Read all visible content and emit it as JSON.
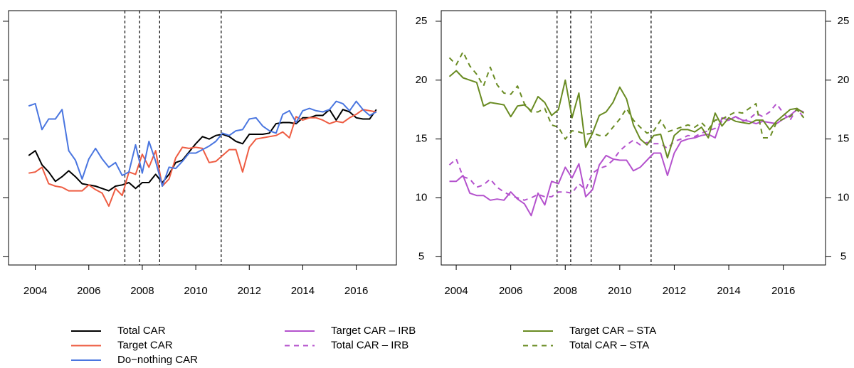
{
  "chart_data": [
    {
      "type": "line",
      "x": [
        2003.75,
        2004.0,
        2004.25,
        2004.5,
        2004.75,
        2005.0,
        2005.25,
        2005.5,
        2005.75,
        2006.0,
        2006.25,
        2006.5,
        2006.75,
        2007.0,
        2007.25,
        2007.5,
        2007.75,
        2008.0,
        2008.25,
        2008.5,
        2008.75,
        2009.0,
        2009.25,
        2009.5,
        2009.75,
        2010.0,
        2010.25,
        2010.5,
        2010.75,
        2011.0,
        2011.25,
        2011.5,
        2011.75,
        2012.0,
        2012.25,
        2012.5,
        2012.75,
        2013.0,
        2013.25,
        2013.5,
        2013.75,
        2014.0,
        2014.25,
        2014.5,
        2014.75,
        2015.0,
        2015.25,
        2015.5,
        2015.75,
        2016.0,
        2016.25,
        2016.5,
        2016.75
      ],
      "xlim": [
        2003.0,
        2017.5
      ],
      "xticks": [
        2004,
        2006,
        2008,
        2010,
        2012,
        2014,
        2016
      ],
      "ylim": [
        4.3,
        25.9
      ],
      "yticks": [
        5,
        10,
        15,
        20,
        25
      ],
      "ytick_sides": [
        "left"
      ],
      "ytick_labels": false,
      "vlines": [
        2007.35,
        2007.9,
        2008.65,
        2010.95
      ],
      "series": [
        {
          "name": "Total CAR",
          "color": "#000000",
          "style": "solid",
          "values": [
            13.6,
            14.0,
            12.8,
            12.2,
            11.4,
            11.8,
            12.3,
            11.8,
            11.2,
            11.1,
            11.0,
            10.8,
            10.6,
            11.0,
            11.1,
            11.3,
            10.8,
            11.3,
            11.3,
            12.0,
            11.3,
            12.0,
            13.0,
            13.2,
            13.9,
            14.6,
            15.2,
            15.0,
            15.3,
            15.4,
            15.2,
            14.8,
            14.6,
            15.4,
            15.4,
            15.4,
            15.5,
            16.3,
            16.4,
            16.4,
            16.3,
            16.8,
            16.8,
            17.0,
            17.0,
            17.5,
            16.6,
            17.5,
            17.3,
            16.8,
            16.7,
            16.7,
            17.5
          ]
        },
        {
          "name": "Target CAR",
          "color": "#ee5c42",
          "style": "solid",
          "values": [
            12.1,
            12.2,
            12.6,
            11.2,
            11.0,
            10.9,
            10.6,
            10.6,
            10.6,
            11.1,
            10.7,
            10.4,
            9.3,
            10.8,
            10.2,
            12.2,
            12.0,
            13.7,
            12.6,
            14.0,
            11.0,
            11.6,
            13.4,
            14.3,
            14.2,
            14.3,
            14.2,
            13.0,
            13.1,
            13.6,
            14.1,
            14.1,
            12.2,
            14.3,
            15.0,
            15.1,
            15.2,
            15.3,
            15.6,
            15.1,
            16.9,
            16.6,
            16.8,
            16.8,
            16.6,
            16.3,
            16.5,
            16.4,
            16.8,
            17.1,
            17.5,
            17.4,
            17.3
          ]
        },
        {
          "name": "Do−nothing CAR",
          "color": "#4a76e0",
          "style": "solid",
          "values": [
            17.8,
            18.0,
            15.8,
            16.7,
            16.7,
            17.5,
            14.0,
            13.2,
            11.6,
            13.3,
            14.2,
            13.3,
            12.6,
            13.0,
            11.9,
            12.2,
            14.5,
            12.1,
            14.8,
            13.1,
            11.0,
            12.6,
            12.5,
            13.1,
            13.8,
            13.8,
            14.1,
            14.4,
            14.8,
            15.5,
            15.3,
            15.7,
            15.8,
            16.7,
            16.8,
            16.1,
            15.7,
            15.5,
            17.1,
            17.4,
            16.4,
            17.4,
            17.6,
            17.4,
            17.3,
            17.5,
            18.2,
            18.0,
            17.4,
            18.2,
            17.5,
            17.0,
            17.3
          ]
        }
      ]
    },
    {
      "type": "line",
      "x": [
        2003.75,
        2004.0,
        2004.25,
        2004.5,
        2004.75,
        2005.0,
        2005.25,
        2005.5,
        2005.75,
        2006.0,
        2006.25,
        2006.5,
        2006.75,
        2007.0,
        2007.25,
        2007.5,
        2007.75,
        2008.0,
        2008.25,
        2008.5,
        2008.75,
        2009.0,
        2009.25,
        2009.5,
        2009.75,
        2010.0,
        2010.25,
        2010.5,
        2010.75,
        2011.0,
        2011.25,
        2011.5,
        2011.75,
        2012.0,
        2012.25,
        2012.5,
        2012.75,
        2013.0,
        2013.25,
        2013.5,
        2013.75,
        2014.0,
        2014.25,
        2014.5,
        2014.75,
        2015.0,
        2015.25,
        2015.5,
        2015.75,
        2016.0,
        2016.25,
        2016.5,
        2016.75
      ],
      "xlim": [
        2003.45,
        2017.55
      ],
      "xticks": [
        2004,
        2006,
        2008,
        2010,
        2012,
        2014,
        2016
      ],
      "ylim": [
        4.3,
        25.9
      ],
      "yticks": [
        5,
        10,
        15,
        20,
        25
      ],
      "ytick_sides": [
        "left",
        "right"
      ],
      "ytick_labels": true,
      "vlines": [
        2007.7,
        2008.2,
        2008.95,
        2011.15
      ],
      "series": [
        {
          "name": "Target CAR – IRB",
          "color": "#b452cd",
          "style": "solid",
          "values": [
            11.4,
            11.4,
            11.9,
            10.4,
            10.2,
            10.2,
            9.8,
            9.9,
            9.8,
            10.5,
            9.9,
            9.5,
            8.5,
            10.4,
            9.4,
            11.4,
            11.2,
            12.6,
            11.7,
            12.9,
            10.1,
            10.7,
            12.8,
            13.6,
            13.3,
            13.2,
            13.2,
            12.3,
            12.6,
            13.2,
            13.8,
            13.8,
            11.9,
            13.8,
            14.8,
            15.0,
            15.1,
            15.3,
            15.4,
            15.1,
            16.8,
            16.6,
            16.9,
            16.6,
            16.5,
            16.3,
            16.5,
            16.4,
            16.3,
            16.7,
            17.0,
            17.5,
            17.3
          ]
        },
        {
          "name": "Total CAR – IRB",
          "color": "#b452cd",
          "style": "dashed",
          "values": [
            12.8,
            13.3,
            11.8,
            11.6,
            10.9,
            11.1,
            11.6,
            10.9,
            10.5,
            10.2,
            10.0,
            9.8,
            10.0,
            10.3,
            10.1,
            10.1,
            10.5,
            10.5,
            10.4,
            11.2,
            10.7,
            12.1,
            12.5,
            12.7,
            13.2,
            14.0,
            14.5,
            14.9,
            14.5,
            14.7,
            14.6,
            14.6,
            14.2,
            14.8,
            15.0,
            15.3,
            15.2,
            15.5,
            15.7,
            15.9,
            16.5,
            16.6,
            16.9,
            16.5,
            16.7,
            17.2,
            16.9,
            17.3,
            18.0,
            17.2,
            16.6,
            17.6,
            16.8
          ]
        },
        {
          "name": "Target CAR – STA",
          "color": "#698b22",
          "style": "solid",
          "values": [
            20.3,
            20.8,
            20.2,
            20.0,
            19.8,
            17.8,
            18.1,
            18.0,
            17.9,
            16.9,
            17.8,
            17.9,
            17.4,
            18.6,
            18.1,
            17.0,
            17.5,
            20.0,
            16.8,
            18.9,
            14.3,
            15.5,
            17.0,
            17.3,
            18.1,
            19.4,
            18.4,
            16.2,
            15.0,
            14.5,
            15.3,
            15.4,
            13.4,
            15.3,
            15.8,
            15.8,
            15.6,
            16.0,
            15.1,
            17.2,
            16.1,
            16.8,
            16.5,
            16.4,
            16.3,
            16.6,
            16.6,
            15.8,
            16.5,
            17.0,
            17.5,
            17.6,
            17.2
          ]
        },
        {
          "name": "Total CAR – STA",
          "color": "#698b22",
          "style": "dashed",
          "values": [
            21.9,
            21.3,
            22.4,
            21.2,
            20.5,
            19.5,
            21.1,
            19.6,
            18.9,
            18.8,
            19.5,
            18.0,
            17.3,
            17.3,
            17.6,
            16.2,
            16.0,
            15.0,
            15.7,
            15.6,
            15.4,
            15.5,
            15.3,
            15.3,
            16.0,
            16.7,
            17.6,
            16.6,
            16.0,
            15.5,
            15.7,
            16.6,
            15.6,
            15.8,
            16.0,
            16.2,
            16.0,
            16.4,
            15.8,
            16.6,
            16.7,
            17.0,
            17.3,
            17.2,
            17.6,
            18.0,
            15.1,
            15.1,
            16.4,
            16.7,
            16.9,
            17.5,
            16.8
          ]
        }
      ]
    }
  ]
}
